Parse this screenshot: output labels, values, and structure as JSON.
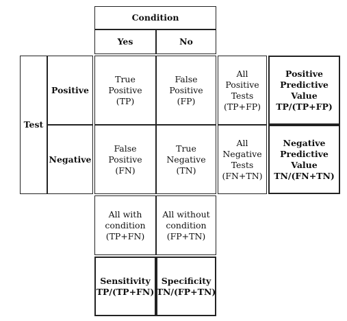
{
  "header": {
    "condition": "Condition",
    "yes": "Yes",
    "no": "No"
  },
  "side": {
    "test": "Test",
    "positive": "Positive",
    "negative": "Negative"
  },
  "cells": {
    "tp": [
      "True",
      "Positive",
      "(TP)"
    ],
    "fp": [
      "False",
      "Positive",
      "(FP)"
    ],
    "fn": [
      "False",
      "Positive",
      "(FN)"
    ],
    "tn": [
      "True",
      "Negative",
      "(TN)"
    ],
    "all_positive": [
      "All",
      "Positive",
      "Tests",
      "(TP+FP)"
    ],
    "all_negative": [
      "All",
      "Negative",
      "Tests",
      "(FN+TN)"
    ],
    "ppv": [
      "Positive",
      "Predictive",
      "Value",
      "TP/(TP+FP)"
    ],
    "npv": [
      "Negative",
      "Predictive",
      "Value",
      "TN/(FN+TN)"
    ],
    "all_with": [
      "All with",
      "condition",
      "(TP+FN)"
    ],
    "all_without": [
      "All without",
      "condition",
      "(FP+TN)"
    ],
    "sensitivity": [
      "Sensitivity",
      "TP/(TP+FN)"
    ],
    "specificity": [
      "Specificity",
      "TN/(FP+TN)"
    ]
  }
}
